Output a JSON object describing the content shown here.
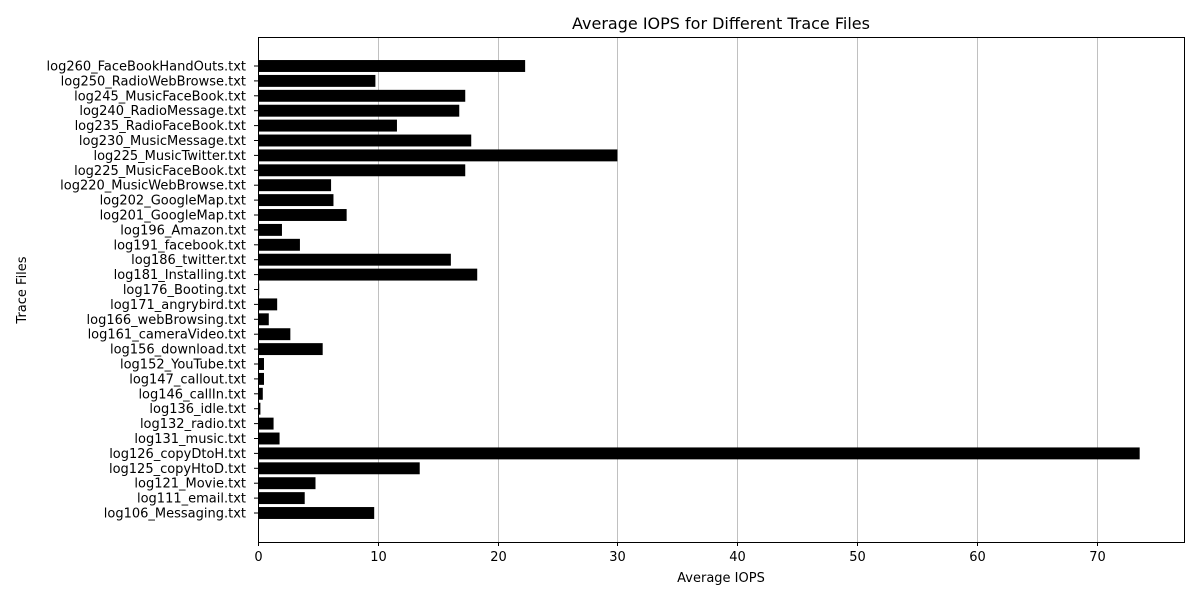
{
  "chart_data": {
    "type": "bar",
    "orientation": "horizontal",
    "title": "Average IOPS for Different Trace Files",
    "xlabel": "Average IOPS",
    "ylabel": "Trace Files",
    "xlim": [
      0,
      77.3
    ],
    "xticks": [
      0,
      10,
      20,
      30,
      40,
      50,
      60,
      70
    ],
    "grid": "x-vertical",
    "bar_color": "#000000",
    "categories": [
      "log106_Messaging.txt",
      "log111_email.txt",
      "log121_Movie.txt",
      "log125_copyHtoD.txt",
      "log126_copyDtoH.txt",
      "log131_music.txt",
      "log132_radio.txt",
      "log136_idle.txt",
      "log146_callIn.txt",
      "log147_callout.txt",
      "log152_YouTube.txt",
      "log156_download.txt",
      "log161_cameraVideo.txt",
      "log166_webBrowsing.txt",
      "log171_angrybird.txt",
      "log176_Booting.txt",
      "log181_Installing.txt",
      "log186_twitter.txt",
      "log191_facebook.txt",
      "log196_Amazon.txt",
      "log201_GoogleMap.txt",
      "log202_GoogleMap.txt",
      "log220_MusicWebBrowse.txt",
      "log225_MusicFaceBook.txt",
      "log225_MusicTwitter.txt",
      "log230_MusicMessage.txt",
      "log235_RadioFaceBook.txt",
      "log240_RadioMessage.txt",
      "log245_MusicFaceBook.txt",
      "log250_RadioWebBrowse.txt",
      "log260_FaceBookHandOuts.txt"
    ],
    "values": [
      9.7,
      3.9,
      4.8,
      13.5,
      73.6,
      1.8,
      1.3,
      0.2,
      0.4,
      0.5,
      0.5,
      5.4,
      2.7,
      0.9,
      1.6,
      0.1,
      18.3,
      16.1,
      3.5,
      2.0,
      7.4,
      6.3,
      6.1,
      17.3,
      30.0,
      17.8,
      11.6,
      16.8,
      17.3,
      9.8,
      22.3
    ]
  }
}
